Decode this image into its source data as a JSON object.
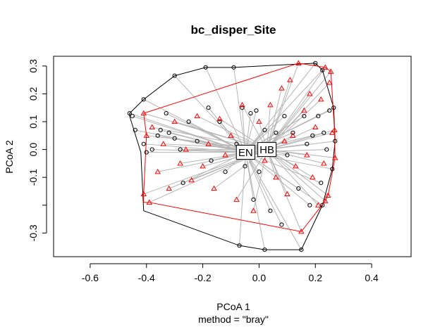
{
  "chart_data": {
    "type": "scatter",
    "title": "bc_disper_Site",
    "xlabel": "PCoA 1",
    "xsublabel": "method = \"bray\"",
    "ylabel": "PCoA 2",
    "xlim": [
      -0.73,
      0.54
    ],
    "ylim": [
      -0.385,
      0.335
    ],
    "xticks": [
      -0.6,
      -0.4,
      -0.2,
      0.0,
      0.2,
      0.4
    ],
    "xtick_labels": [
      "-0.6",
      "-0.4",
      "-0.2",
      "0.0",
      "0.2",
      "0.4"
    ],
    "yticks": [
      -0.3,
      -0.2,
      -0.1,
      0.0,
      0.1,
      0.2,
      0.3
    ],
    "ytick_labels": [
      "-0.3",
      "",
      "-0.1",
      "0.0",
      "0.1",
      "0.2",
      "0.3"
    ],
    "grid": false,
    "colors": {
      "spoke": "#b5b5b5",
      "hull_black": "#000000",
      "hull_red": "#ff0000",
      "points_black": "#000000",
      "points_red": "#ff0000"
    },
    "centroids": [
      {
        "label": "EN",
        "x": -0.048,
        "y": -0.01
      },
      {
        "label": "HB",
        "x": 0.028,
        "y": 0.0
      }
    ],
    "groups": [
      {
        "name": "EN",
        "color": "#000000",
        "marker": "circle",
        "hull": [
          [
            -0.46,
            0.13
          ],
          [
            -0.41,
            0.18
          ],
          [
            -0.3,
            0.265
          ],
          [
            -0.19,
            0.295
          ],
          [
            -0.09,
            0.295
          ],
          [
            0.2,
            0.31
          ],
          [
            0.225,
            0.285
          ],
          [
            0.265,
            0.15
          ],
          [
            0.27,
            0.03
          ],
          [
            0.26,
            -0.07
          ],
          [
            0.225,
            -0.2
          ],
          [
            0.15,
            -0.36
          ],
          [
            0.02,
            -0.36
          ],
          [
            -0.07,
            -0.345
          ],
          [
            -0.41,
            -0.22
          ],
          [
            -0.42,
            -0.01
          ],
          [
            -0.46,
            0.12
          ]
        ],
        "points": [
          [
            -0.46,
            0.13
          ],
          [
            -0.45,
            0.12
          ],
          [
            -0.44,
            0.07
          ],
          [
            -0.41,
            0.18
          ],
          [
            -0.41,
            0.02
          ],
          [
            -0.4,
            -0.01
          ],
          [
            -0.38,
            0.0
          ],
          [
            -0.36,
            0.05
          ],
          [
            -0.35,
            0.07
          ],
          [
            -0.33,
            0.13
          ],
          [
            -0.32,
            0.06
          ],
          [
            -0.3,
            0.265
          ],
          [
            -0.3,
            0.04
          ],
          [
            -0.28,
            0.0
          ],
          [
            -0.27,
            -0.12
          ],
          [
            -0.25,
            0.1
          ],
          [
            -0.22,
            0.03
          ],
          [
            -0.19,
            0.295
          ],
          [
            -0.18,
            0.15
          ],
          [
            -0.17,
            -0.04
          ],
          [
            -0.14,
            0.1
          ],
          [
            -0.12,
            -0.08
          ],
          [
            -0.09,
            0.295
          ],
          [
            -0.08,
            0.02
          ],
          [
            -0.07,
            -0.345
          ],
          [
            -0.06,
            0.15
          ],
          [
            -0.05,
            -0.06
          ],
          [
            -0.03,
            0.13
          ],
          [
            -0.02,
            -0.18
          ],
          [
            -0.01,
            0.14
          ],
          [
            0.0,
            -0.08
          ],
          [
            0.02,
            -0.36
          ],
          [
            0.02,
            0.07
          ],
          [
            0.04,
            -0.22
          ],
          [
            0.06,
            0.06
          ],
          [
            0.08,
            -0.27
          ],
          [
            0.09,
            0.12
          ],
          [
            0.1,
            -0.02
          ],
          [
            0.12,
            0.06
          ],
          [
            0.14,
            -0.14
          ],
          [
            0.15,
            -0.36
          ],
          [
            0.16,
            0.12
          ],
          [
            0.17,
            0.02
          ],
          [
            0.18,
            -0.2
          ],
          [
            0.19,
            0.05
          ],
          [
            0.2,
            0.31
          ],
          [
            0.21,
            0.12
          ],
          [
            0.22,
            -0.12
          ],
          [
            0.225,
            0.285
          ],
          [
            0.23,
            0.06
          ],
          [
            0.24,
            0.0
          ],
          [
            0.25,
            0.14
          ],
          [
            0.265,
            0.15
          ],
          [
            0.27,
            0.03
          ],
          [
            0.26,
            -0.07
          ],
          [
            0.225,
            -0.2
          ]
        ]
      },
      {
        "name": "HB",
        "color": "#ff0000",
        "marker": "triangle",
        "hull": [
          [
            -0.41,
            0.13
          ],
          [
            -0.4,
            0.05
          ],
          [
            -0.41,
            -0.16
          ],
          [
            -0.41,
            -0.19
          ],
          [
            -0.39,
            -0.19
          ],
          [
            0.15,
            -0.295
          ],
          [
            0.235,
            -0.185
          ],
          [
            0.245,
            -0.165
          ],
          [
            0.27,
            -0.03
          ],
          [
            0.268,
            0.07
          ],
          [
            0.255,
            0.28
          ],
          [
            0.235,
            0.295
          ],
          [
            0.14,
            0.31
          ],
          [
            -0.41,
            0.13
          ]
        ],
        "points": [
          [
            -0.41,
            0.13
          ],
          [
            -0.4,
            0.05
          ],
          [
            -0.41,
            -0.16
          ],
          [
            -0.39,
            -0.19
          ],
          [
            -0.38,
            0.08
          ],
          [
            -0.36,
            -0.08
          ],
          [
            -0.34,
            0.02
          ],
          [
            -0.32,
            -0.14
          ],
          [
            -0.3,
            0.1
          ],
          [
            -0.28,
            -0.05
          ],
          [
            -0.26,
            0.0
          ],
          [
            -0.24,
            -0.11
          ],
          [
            -0.22,
            0.12
          ],
          [
            -0.2,
            -0.06
          ],
          [
            -0.18,
            0.02
          ],
          [
            -0.16,
            -0.14
          ],
          [
            -0.14,
            0.11
          ],
          [
            -0.12,
            -0.02
          ],
          [
            -0.1,
            0.05
          ],
          [
            -0.08,
            -0.18
          ],
          [
            -0.06,
            0.16
          ],
          [
            -0.04,
            0.0
          ],
          [
            -0.02,
            -0.22
          ],
          [
            0.0,
            0.1
          ],
          [
            0.02,
            -0.04
          ],
          [
            0.04,
            0.16
          ],
          [
            0.06,
            -0.1
          ],
          [
            0.08,
            0.22
          ],
          [
            0.09,
            0.03
          ],
          [
            0.1,
            -0.16
          ],
          [
            0.11,
            0.25
          ],
          [
            0.12,
            0.05
          ],
          [
            0.13,
            -0.06
          ],
          [
            0.14,
            0.31
          ],
          [
            0.15,
            -0.295
          ],
          [
            0.16,
            0.14
          ],
          [
            0.17,
            -0.02
          ],
          [
            0.18,
            0.2
          ],
          [
            0.19,
            -0.1
          ],
          [
            0.2,
            0.08
          ],
          [
            0.21,
            -0.2
          ],
          [
            0.22,
            0.18
          ],
          [
            0.23,
            -0.05
          ],
          [
            0.235,
            -0.185
          ],
          [
            0.245,
            -0.165
          ],
          [
            0.25,
            0.24
          ],
          [
            0.255,
            0.28
          ],
          [
            0.235,
            0.295
          ],
          [
            0.26,
            0.06
          ],
          [
            0.268,
            0.07
          ],
          [
            0.27,
            -0.03
          ]
        ]
      }
    ]
  }
}
